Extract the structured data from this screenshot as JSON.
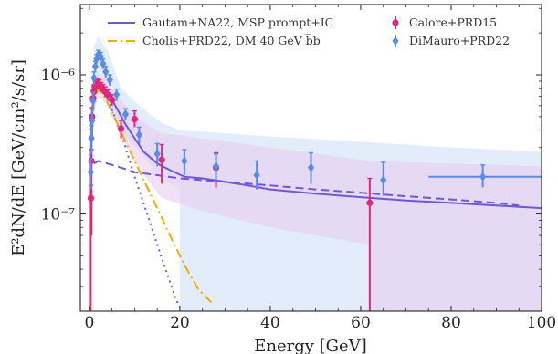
{
  "chart_data": {
    "type": "line",
    "xlabel": "Energy [GeV]",
    "ylabel": "E²dN/dE [GeV/cm²/s/sr]",
    "xlim": [
      -2,
      100
    ],
    "ylim": [
      2e-08,
      3.2e-06
    ],
    "yscale": "log",
    "xticks": [
      0,
      20,
      40,
      60,
      80,
      100
    ],
    "xtick_labels": [
      "0",
      "20",
      "40",
      "60",
      "80",
      "100"
    ],
    "yticks": [
      1e-07,
      1e-06
    ],
    "ytick_labels": [
      "10⁻⁷",
      "10⁻⁶"
    ],
    "legend": {
      "placement": "top",
      "columns": 2
    },
    "series": [
      {
        "name": "Gautam+NA22, MSP prompt+IC",
        "style": "solid",
        "color": "#6e58d8",
        "x": [
          0.3,
          0.6,
          1.0,
          1.5,
          2.0,
          2.5,
          3.0,
          4.0,
          5.0,
          6.0,
          8.0,
          10.0,
          12.0,
          15.0,
          18.0,
          21.0,
          25.0,
          30.0,
          35.0,
          40.0,
          50.0,
          60.0,
          70.0,
          80.0,
          90.0,
          100.0
        ],
        "y": [
          2.5e-07,
          5.5e-07,
          7.5e-07,
          8.8e-07,
          9e-07,
          8.7e-07,
          8.2e-07,
          7.5e-07,
          6.6e-07,
          5.8e-07,
          4.4e-07,
          3.5e-07,
          2.8e-07,
          2.3e-07,
          2.05e-07,
          1.85e-07,
          1.8e-07,
          1.7e-07,
          1.6e-07,
          1.5e-07,
          1.4e-07,
          1.32e-07,
          1.25e-07,
          1.2e-07,
          1.15e-07,
          1.1e-07
        ]
      },
      {
        "name": "",
        "style": "dashed",
        "color": "#6e58d8",
        "x": [
          1.0,
          2.0,
          3.0,
          5.0,
          7.0,
          10.0,
          15.0,
          20.0,
          30.0,
          40.0,
          50.0,
          60.0,
          70.0,
          80.0,
          90.0,
          95.0
        ],
        "y": [
          2.3e-07,
          2.4e-07,
          2.35e-07,
          2.25e-07,
          2.15e-07,
          2e-07,
          1.9e-07,
          1.8e-07,
          1.7e-07,
          1.6e-07,
          1.5e-07,
          1.42e-07,
          1.34e-07,
          1.27e-07,
          1.2e-07,
          1.15e-07
        ]
      },
      {
        "name": "",
        "style": "dotted",
        "color": "#6e58d8",
        "x": [
          0.3,
          0.8,
          1.5,
          2.2,
          3.0,
          4.0,
          6.0,
          8.0,
          10.0,
          13.0,
          16.0,
          19.0,
          21.0
        ],
        "y": [
          4e-07,
          7e-07,
          8.4e-07,
          8.5e-07,
          8e-07,
          6.8e-07,
          4.6e-07,
          3e-07,
          1.85e-07,
          9.5e-08,
          4.8e-08,
          2.5e-08,
          1.8e-08
        ]
      },
      {
        "name": "Cholis+PRD22, DM 40 GeV b̅b",
        "style": "dashdot",
        "color": "#f2ad00",
        "x": [
          0.5,
          1.0,
          2.0,
          3.0,
          4.0,
          6.0,
          8.0,
          10.0,
          12.0,
          15.0,
          18.0,
          21.0,
          24.0,
          27.0
        ],
        "y": [
          5.5e-07,
          7e-07,
          7.8e-07,
          7.3e-07,
          6.3e-07,
          4.6e-07,
          3.3e-07,
          2.4e-07,
          1.75e-07,
          1.1e-07,
          6.8e-08,
          4.3e-08,
          2.9e-08,
          2.3e-08
        ]
      }
    ],
    "data_points": [
      {
        "name": "Calore+PRD15",
        "marker": "circle",
        "color": "#e0287a",
        "x": [
          0.3,
          0.45,
          0.6,
          0.8,
          1.0,
          1.2,
          1.5,
          1.8,
          2.2,
          2.6,
          3.0,
          3.5,
          4.0,
          5.0,
          7.0,
          10.0,
          16.0,
          28.0,
          62.0
        ],
        "y": [
          1.3e-07,
          2.4e-07,
          5e-07,
          6.8e-07,
          7.6e-07,
          8.2e-07,
          8.6e-07,
          8.7e-07,
          8.5e-07,
          8.2e-07,
          7.9e-07,
          7.6e-07,
          7.2e-07,
          6.6e-07,
          4.1e-07,
          4.8e-07,
          2.45e-07,
          2.15e-07,
          1.2e-07
        ],
        "y_err_low": [
          1.2e-07,
          1.7e-07,
          1.5e-07,
          1.3e-07,
          1.1e-07,
          1e-07,
          9e-08,
          8e-08,
          7e-08,
          6e-08,
          6e-08,
          6e-08,
          6e-08,
          6e-08,
          6e-08,
          6e-08,
          8e-08,
          6e-08,
          1.2e-07
        ],
        "y_err_high": [
          3e-08,
          5e-08,
          8e-08,
          9e-08,
          9e-08,
          8e-08,
          8e-08,
          7e-08,
          7e-08,
          6e-08,
          6e-08,
          6e-08,
          6e-08,
          6e-08,
          6e-08,
          7e-08,
          7e-08,
          6e-08,
          6e-08
        ]
      },
      {
        "name": "DiMauro+PRD22",
        "marker": "diamond",
        "color": "#5a8be6",
        "x": [
          0.3,
          0.45,
          0.6,
          0.8,
          1.0,
          1.3,
          1.6,
          2.0,
          2.5,
          3.0,
          3.6,
          4.5,
          6.0,
          8.0,
          11.0,
          15.0,
          21.0,
          28.0,
          37.0,
          49.0,
          65.0,
          87.0
        ],
        "y": [
          2e-07,
          3.5e-07,
          4.7e-07,
          6.5e-07,
          9.5e-07,
          1.15e-06,
          1.3e-06,
          1.4e-06,
          1.35e-06,
          1.2e-06,
          1.05e-06,
          9.2e-07,
          7.2e-07,
          5.2e-07,
          3.7e-07,
          2.7e-07,
          2.4e-07,
          2.2e-07,
          1.9e-07,
          2.15e-07,
          1.75e-07,
          1.85e-07
        ],
        "y_err_low": [
          5e-08,
          8e-08,
          1e-07,
          1e-07,
          1e-07,
          1e-07,
          1e-07,
          1e-07,
          1e-07,
          1e-07,
          1e-07,
          8e-08,
          7e-08,
          5e-08,
          5e-08,
          5e-08,
          5e-08,
          5e-08,
          4e-08,
          5e-08,
          4e-08,
          3e-08
        ],
        "y_err_high": [
          5e-08,
          8e-08,
          1e-07,
          1e-07,
          1e-07,
          1e-07,
          1e-07,
          1e-07,
          1e-07,
          1e-07,
          1e-07,
          8e-08,
          7e-08,
          5e-08,
          5e-08,
          5e-08,
          5e-08,
          5e-08,
          5e-08,
          6e-08,
          6e-08,
          4e-08
        ],
        "x_err_low": [
          0,
          0,
          0,
          0,
          0,
          0,
          0,
          0,
          0,
          0,
          0,
          0,
          0,
          0,
          0,
          0,
          0,
          0,
          0,
          0,
          0,
          12
        ],
        "x_err_high": [
          0,
          0,
          0,
          0,
          0,
          0,
          0,
          0,
          0,
          0,
          0,
          0,
          0,
          0,
          0,
          0,
          0,
          0,
          0,
          0,
          0,
          13
        ]
      }
    ],
    "bands": [
      {
        "name": "DiMauro+PRD22 systematic band",
        "color": "#cfe0f8",
        "x": [
          0.3,
          1.0,
          2.0,
          4.0,
          7.0,
          11.0,
          16.0,
          20.0,
          20.0,
          40.0,
          60.0,
          80.0,
          100.0
        ],
        "upper": [
          3e-07,
          1.6e-06,
          1.9e-06,
          1.5e-06,
          8e-07,
          6e-07,
          4.5e-07,
          4e-07,
          4e-07,
          3.6e-07,
          3.3e-07,
          3e-07,
          2.8e-07
        ],
        "lower": [
          1e-07,
          5e-07,
          8e-07,
          6.5e-07,
          4e-07,
          2.8e-07,
          1.8e-07,
          1.5e-07,
          1.5e-08,
          1.5e-08,
          1.5e-08,
          1.5e-08,
          1.5e-08
        ]
      },
      {
        "name": "Calore+PRD15 systematic band",
        "color": "#e8cdee",
        "x": [
          0.3,
          1.0,
          2.0,
          4.0,
          7.0,
          11.0,
          16.0,
          25.0,
          40.0,
          62.0,
          62.0,
          80.0,
          100.0
        ],
        "upper": [
          2e-07,
          9.5e-07,
          1.05e-06,
          9e-07,
          6.5e-07,
          4.8e-07,
          3.8e-07,
          3.5e-07,
          3e-07,
          2.4e-07,
          2.4e-07,
          2.3e-07,
          2.2e-07
        ],
        "lower": [
          6e-08,
          5.5e-07,
          7e-07,
          6e-07,
          3.5e-07,
          2.1e-07,
          1.3e-07,
          1.05e-07,
          8e-08,
          6e-08,
          1.5e-08,
          1.5e-08,
          1.5e-08
        ]
      }
    ]
  }
}
